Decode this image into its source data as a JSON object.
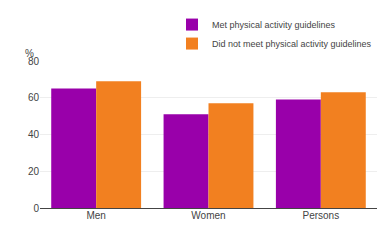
{
  "chart_data": {
    "type": "bar",
    "ylabel": "%",
    "categories": [
      "Men",
      "Women",
      "Persons"
    ],
    "series": [
      {
        "name": "Met physical activity guidelines",
        "color": "#9900AA",
        "values": [
          65,
          51,
          59
        ]
      },
      {
        "name": "Did not meet physical activity guidelines",
        "color": "#F28020",
        "values": [
          69,
          57,
          63
        ]
      }
    ],
    "ylim": [
      0,
      80
    ],
    "yticks": [
      0,
      20,
      40,
      60,
      80
    ],
    "grid": true,
    "legend": "upper right"
  }
}
